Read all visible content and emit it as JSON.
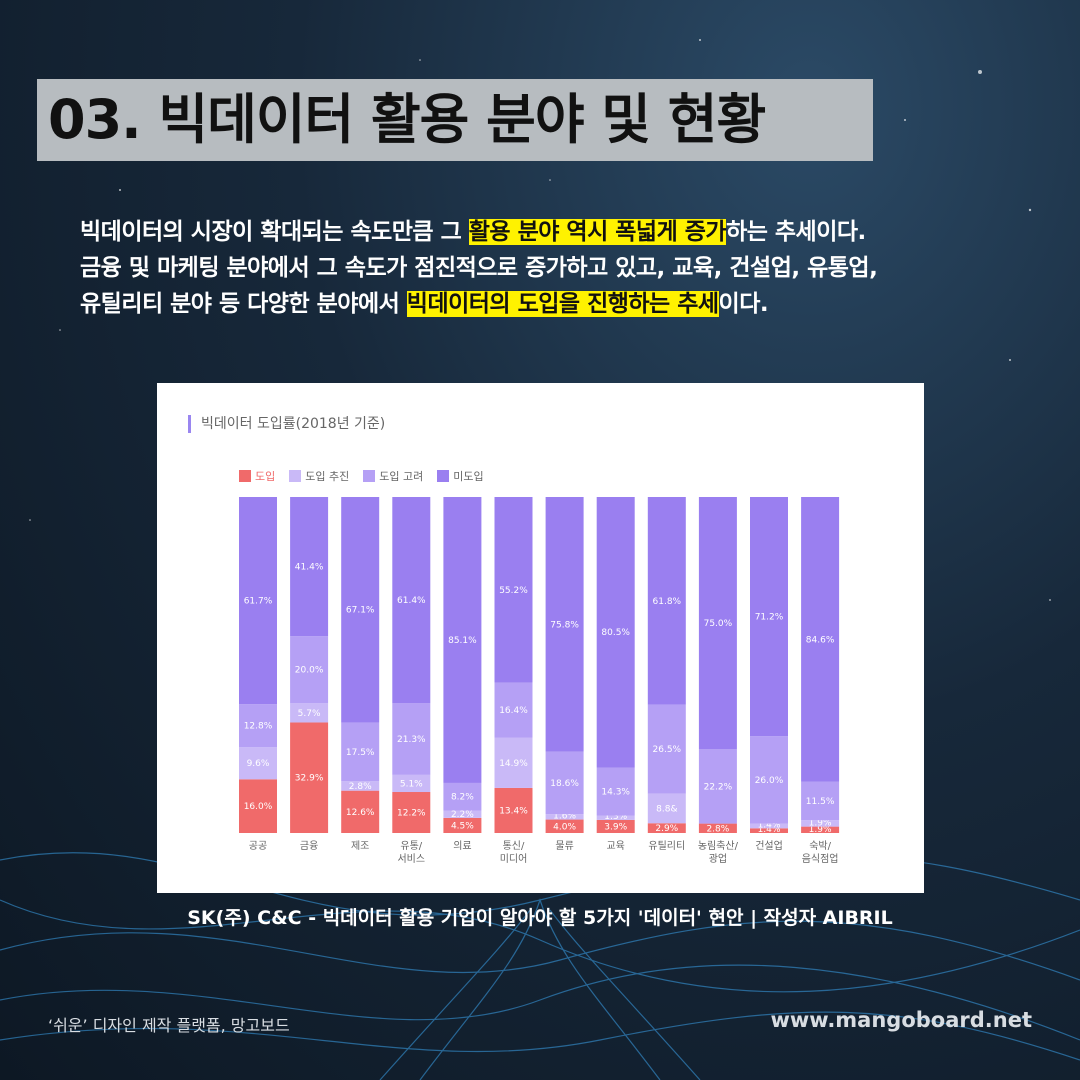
{
  "page": {
    "heading": "03. 빅데이터 활용 분야 및 현황",
    "intro_lines": [
      {
        "before": "빅데이터의 시장이 확대되는 속도만큼 그 ",
        "highlight": "활용 분야 역시 폭넓게 증가",
        "after": "하는 추세이다."
      },
      {
        "before": "금융 및 마케팅 분야에서 그 속도가 점진적으로 증가하고 있고, 교육, 건설업, 유통업,",
        "highlight": "",
        "after": ""
      },
      {
        "before": "유틸리티 분야 등 다양한 분야에서 ",
        "highlight": "빅데이터의 도입을 진행하는 추세",
        "after": "이다."
      }
    ],
    "source": "SK(주) C&C - 빅데이터 활용 기업이 알아야 할 5가지 '데이터' 현안 | 작성자 AIBRIL",
    "footer_left": "‘쉬운’ 디자인 제작 플랫폼, 망고보드",
    "footer_right": "www.mangoboard.net"
  },
  "colors": {
    "intro_highlight": "#fff200",
    "title_box": "#b7bcc0"
  },
  "chart_data": {
    "type": "bar",
    "stacked": true,
    "title": "빅데이터 도입률(2018년 기준)",
    "categories": [
      "공공",
      "금융",
      "제조",
      "유통/\n서비스",
      "의료",
      "통신/\n미디어",
      "물류",
      "교육",
      "유틸리티",
      "농림축산/\n광업",
      "건설업",
      "숙박/\n음식점업"
    ],
    "ylim": [
      0,
      100
    ],
    "legend_position": "top-left",
    "series": [
      {
        "name": "도입",
        "color": "#f06a6a",
        "values": [
          16.0,
          32.9,
          12.6,
          12.2,
          4.5,
          13.4,
          4.0,
          3.9,
          2.9,
          2.8,
          1.4,
          1.9
        ],
        "labels": [
          "16.0%",
          "32.9%",
          "12.6%",
          "12.2%",
          "4.5%",
          "13.4%",
          "4.0%",
          "3.9%",
          "2.9%",
          "2.8%",
          "1.4%",
          "1.9%"
        ]
      },
      {
        "name": "도입 추진",
        "color": "#c9b9f7",
        "values": [
          9.6,
          5.7,
          2.8,
          5.1,
          2.2,
          14.9,
          1.6,
          1.3,
          8.8,
          0,
          1.4,
          1.9
        ],
        "labels": [
          "9.6%",
          "5.7%",
          "2.8%",
          "5.1%",
          "2.2%",
          "14.9%",
          "1.6%",
          "1.3%",
          "8.8&",
          "",
          "1.4%",
          "1.9%"
        ]
      },
      {
        "name": "도입 고려",
        "color": "#b5a0f5",
        "values": [
          12.8,
          20.0,
          17.5,
          21.3,
          8.2,
          16.4,
          18.6,
          14.3,
          26.5,
          22.2,
          26.0,
          11.5
        ],
        "labels": [
          "12.8%",
          "20.0%",
          "17.5%",
          "21.3%",
          "8.2%",
          "16.4%",
          "18.6%",
          "14.3%",
          "26.5%",
          "22.2%",
          "26.0%",
          "11.5%"
        ]
      },
      {
        "name": "미도입",
        "color": "#9a7ff0",
        "values": [
          61.7,
          41.4,
          67.1,
          61.4,
          85.1,
          55.2,
          75.8,
          80.5,
          61.8,
          75.0,
          71.2,
          84.6
        ],
        "labels": [
          "61.7%",
          "41.4%",
          "67.1%",
          "61.4%",
          "85.1%",
          "55.2%",
          "75.8%",
          "80.5%",
          "61.8%",
          "75.0%",
          "71.2%",
          "84.6%"
        ]
      }
    ]
  }
}
